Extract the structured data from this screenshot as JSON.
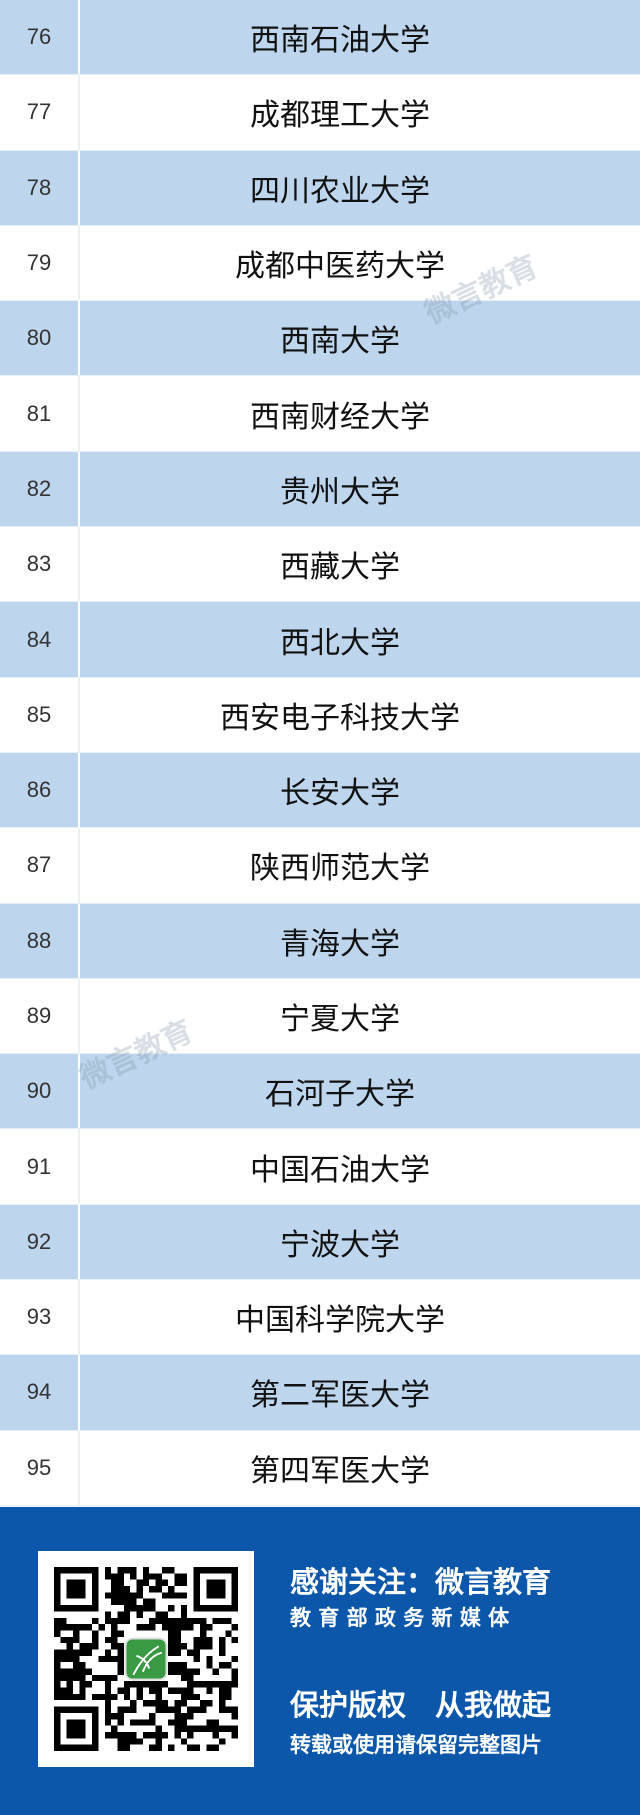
{
  "rows": [
    {
      "rank": "76",
      "name": "西南石油大学"
    },
    {
      "rank": "77",
      "name": "成都理工大学"
    },
    {
      "rank": "78",
      "name": "四川农业大学"
    },
    {
      "rank": "79",
      "name": "成都中医药大学"
    },
    {
      "rank": "80",
      "name": "西南大学"
    },
    {
      "rank": "81",
      "name": "西南财经大学"
    },
    {
      "rank": "82",
      "name": "贵州大学"
    },
    {
      "rank": "83",
      "name": "西藏大学"
    },
    {
      "rank": "84",
      "name": "西北大学"
    },
    {
      "rank": "85",
      "name": "西安电子科技大学"
    },
    {
      "rank": "86",
      "name": "长安大学"
    },
    {
      "rank": "87",
      "name": "陕西师范大学"
    },
    {
      "rank": "88",
      "name": "青海大学"
    },
    {
      "rank": "89",
      "name": "宁夏大学"
    },
    {
      "rank": "90",
      "name": "石河子大学"
    },
    {
      "rank": "91",
      "name": "中国石油大学"
    },
    {
      "rank": "92",
      "name": "宁波大学"
    },
    {
      "rank": "93",
      "name": "中国科学院大学"
    },
    {
      "rank": "94",
      "name": "第二军医大学"
    },
    {
      "rank": "95",
      "name": "第四军医大学"
    }
  ],
  "watermark": "微言教育",
  "footer": {
    "line1": "感谢关注：微言教育",
    "line2": "教 育 部 政 务 新 媒 体",
    "line3": "保护版权　从我做起",
    "line4": "转载或使用请保留完整图片",
    "qr_icon": "qr-code"
  },
  "colors": {
    "row_blue": "#bed6ed",
    "footer_blue": "#0c57a9",
    "logo_green": "#3a9a44"
  }
}
